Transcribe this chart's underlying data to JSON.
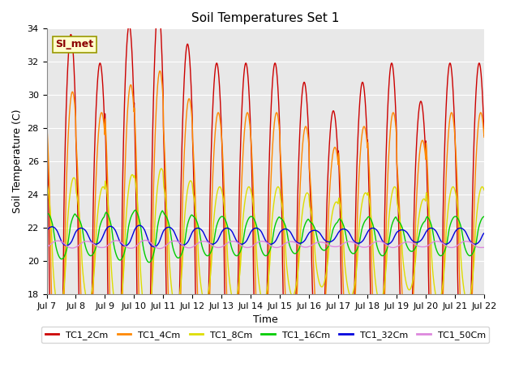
{
  "title": "Soil Temperatures Set 1",
  "xlabel": "Time",
  "ylabel": "Soil Temperature (C)",
  "ylim": [
    18,
    34
  ],
  "xlim_days": [
    0,
    15
  ],
  "x_tick_labels": [
    "Jul 7",
    "Jul 8",
    "Jul 9",
    "Jul 10",
    "Jul 11",
    "Jul 12",
    "Jul 13",
    "Jul 14",
    "Jul 15",
    "Jul 16",
    "Jul 17",
    "Jul 18",
    "Jul 19",
    "Jul 20",
    "Jul 21",
    "Jul 22"
  ],
  "x_tick_positions": [
    0,
    1,
    2,
    3,
    4,
    5,
    6,
    7,
    8,
    9,
    10,
    11,
    12,
    13,
    14,
    15
  ],
  "y_ticks": [
    18,
    20,
    22,
    24,
    26,
    28,
    30,
    32,
    34
  ],
  "background_color": "#e8e8e8",
  "figure_color": "#ffffff",
  "series": [
    {
      "name": "TC1_2Cm",
      "color": "#cc0000",
      "base": 21.0,
      "amp": 11.0,
      "lag": 0.0,
      "depth_smooth": 1
    },
    {
      "name": "TC1_4Cm",
      "color": "#ff8800",
      "base": 21.0,
      "amp": 8.0,
      "lag": 0.05,
      "depth_smooth": 2
    },
    {
      "name": "TC1_8Cm",
      "color": "#dddd00",
      "base": 21.0,
      "amp": 3.5,
      "lag": 0.1,
      "depth_smooth": 4
    },
    {
      "name": "TC1_16Cm",
      "color": "#00cc00",
      "base": 21.5,
      "amp": 1.2,
      "lag": 0.18,
      "depth_smooth": 10
    },
    {
      "name": "TC1_32Cm",
      "color": "#0000dd",
      "base": 21.5,
      "amp": 0.5,
      "lag": 0.35,
      "depth_smooth": 20
    },
    {
      "name": "TC1_50Cm",
      "color": "#dd88dd",
      "base": 21.0,
      "amp": 0.2,
      "lag": 0.55,
      "depth_smooth": 30
    }
  ],
  "peak_heights": [
    32.0,
    30.5,
    32.5,
    33.5,
    31.5,
    30.5,
    30.5,
    30.5,
    29.5,
    28.0,
    29.5,
    30.5,
    28.5,
    30.5,
    30.5
  ],
  "annotation_text": "SI_met",
  "linewidth": 1.0
}
